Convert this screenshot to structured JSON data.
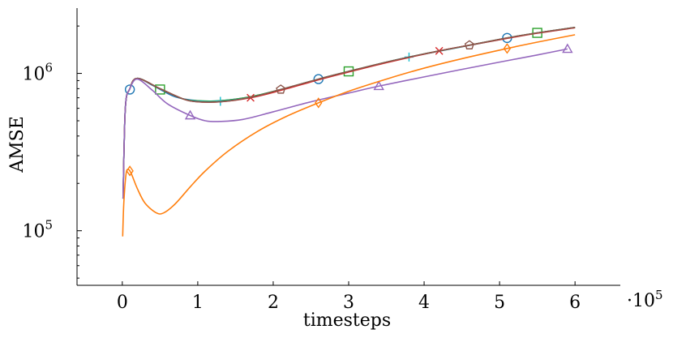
{
  "chart_data": {
    "type": "line",
    "xlabel": "timesteps",
    "ylabel": "AMSE",
    "x_multiplier_label": "·10",
    "x_multiplier_exp": "5",
    "xlim": [
      -0.6,
      6.6
    ],
    "ylim": [
      45000,
      2600000
    ],
    "y_scale": "log",
    "x_ticks": [
      0,
      1,
      2,
      3,
      4,
      5,
      6
    ],
    "x_tick_labels": [
      "0",
      "1",
      "2",
      "3",
      "4",
      "5",
      "6"
    ],
    "y_ticks": [
      100000,
      1000000
    ],
    "y_tick_labels": [
      {
        "base": "10",
        "exp": "5"
      },
      {
        "base": "10",
        "exp": "6"
      }
    ],
    "grid": false,
    "series": [
      {
        "color": "#1f77b4",
        "marker": "circle",
        "x": [
          0.01,
          0.04,
          0.1,
          0.2,
          0.4,
          0.7,
          1.0,
          1.3,
          1.7,
          2.1,
          2.6,
          3.0,
          3.5,
          4.0,
          4.5,
          5.1,
          5.5,
          6.0
        ],
        "y": [
          160000,
          600000,
          800000,
          930000,
          840000,
          710000,
          670000,
          670000,
          710000,
          790000,
          920000,
          1030000,
          1180000,
          1330000,
          1480000,
          1680000,
          1810000,
          1960000
        ],
        "marker_x": [
          0.1,
          2.6,
          5.1
        ],
        "marker_y": [
          790000,
          920000,
          1680000
        ]
      },
      {
        "color": "#2ca02c",
        "marker": "square",
        "x": [
          0.01,
          0.04,
          0.1,
          0.2,
          0.5,
          0.8,
          1.0,
          1.3,
          1.7,
          2.1,
          2.6,
          3.0,
          3.5,
          4.0,
          4.5,
          5.1,
          5.5,
          6.0
        ],
        "y": [
          160000,
          600000,
          800000,
          930000,
          800000,
          690000,
          670000,
          670000,
          710000,
          790000,
          920000,
          1030000,
          1180000,
          1330000,
          1480000,
          1680000,
          1810000,
          1960000
        ],
        "marker_x": [
          0.5,
          3.0,
          5.5
        ],
        "marker_y": [
          790000,
          1030000,
          1810000
        ]
      },
      {
        "color": "#17becf",
        "marker": "plus",
        "x": [
          0.01,
          0.04,
          0.1,
          0.2,
          0.5,
          0.8,
          1.0,
          1.3,
          1.7,
          2.1,
          2.6,
          3.0,
          3.5,
          3.8,
          4.5,
          5.1,
          5.5,
          6.0
        ],
        "y": [
          160000,
          600000,
          800000,
          930000,
          800000,
          690000,
          665000,
          665000,
          705000,
          785000,
          915000,
          1025000,
          1175000,
          1270000,
          1475000,
          1675000,
          1805000,
          1955000
        ],
        "marker_x": [
          1.3,
          3.8
        ],
        "marker_y": [
          665000,
          1270000
        ]
      },
      {
        "color": "#d62728",
        "marker": "cross",
        "x": [
          0.01,
          0.04,
          0.1,
          0.2,
          0.5,
          0.8,
          1.0,
          1.3,
          1.7,
          2.1,
          2.6,
          3.0,
          3.5,
          4.2,
          4.6,
          5.1,
          5.5,
          6.0
        ],
        "y": [
          160000,
          600000,
          800000,
          930000,
          800000,
          690000,
          660000,
          660000,
          700000,
          780000,
          910000,
          1020000,
          1170000,
          1390000,
          1510000,
          1670000,
          1800000,
          1950000
        ],
        "marker_x": [
          1.7,
          4.2
        ],
        "marker_y": [
          700000,
          1390000
        ]
      },
      {
        "color": "#8c564b",
        "marker": "pentagon",
        "x": [
          0.01,
          0.04,
          0.1,
          0.2,
          0.5,
          0.8,
          1.0,
          1.3,
          1.7,
          2.1,
          2.6,
          3.0,
          3.5,
          4.0,
          4.6,
          5.1,
          5.5,
          6.0
        ],
        "y": [
          160000,
          600000,
          800000,
          930000,
          800000,
          690000,
          660000,
          660000,
          705000,
          790000,
          920000,
          1030000,
          1180000,
          1330000,
          1510000,
          1680000,
          1810000,
          1960000
        ],
        "marker_x": [
          2.1,
          4.6
        ],
        "marker_y": [
          790000,
          1510000
        ]
      },
      {
        "color": "#9467bd",
        "marker": "triangle",
        "x": [
          0.01,
          0.04,
          0.1,
          0.2,
          0.4,
          0.6,
          0.9,
          1.1,
          1.3,
          1.6,
          2.0,
          2.5,
          3.0,
          3.4,
          4.0,
          4.5,
          5.0,
          5.5,
          5.9
        ],
        "y": [
          160000,
          600000,
          800000,
          920000,
          780000,
          640000,
          540000,
          500000,
          495000,
          510000,
          570000,
          660000,
          750000,
          830000,
          950000,
          1060000,
          1180000,
          1310000,
          1430000
        ],
        "marker_x": [
          0.9,
          3.4,
          5.9
        ],
        "marker_y": [
          540000,
          830000,
          1430000
        ]
      },
      {
        "color": "#ff7f0e",
        "marker": "diamond",
        "x": [
          0.005,
          0.02,
          0.05,
          0.08,
          0.12,
          0.2,
          0.3,
          0.45,
          0.55,
          0.7,
          0.9,
          1.1,
          1.4,
          1.8,
          2.2,
          2.6,
          3.0,
          3.5,
          4.0,
          4.5,
          5.1,
          5.5,
          6.0
        ],
        "y": [
          92000,
          150000,
          230000,
          245000,
          230000,
          185000,
          150000,
          130000,
          130000,
          148000,
          190000,
          240000,
          320000,
          430000,
          540000,
          650000,
          770000,
          920000,
          1080000,
          1240000,
          1440000,
          1580000,
          1760000
        ],
        "marker_x": [
          0.1,
          2.6,
          5.1
        ],
        "marker_y": [
          240000,
          650000,
          1440000
        ]
      }
    ]
  }
}
